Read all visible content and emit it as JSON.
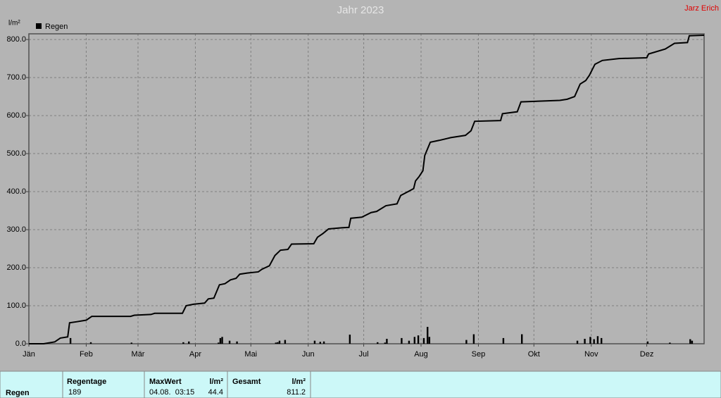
{
  "chart_data": {
    "type": "bar",
    "title": "Jahr 2023",
    "author": "Jarz Erich",
    "ylabel": "l/m²",
    "xlim": [
      0,
      365
    ],
    "xticks": [
      {
        "value": 0,
        "label": "Jän"
      },
      {
        "value": 31,
        "label": "Feb"
      },
      {
        "value": 59,
        "label": "Mär"
      },
      {
        "value": 90,
        "label": "Apr"
      },
      {
        "value": 120,
        "label": "Mai"
      },
      {
        "value": 151,
        "label": "Jun"
      },
      {
        "value": 181,
        "label": "Jul"
      },
      {
        "value": 212,
        "label": "Aug"
      },
      {
        "value": 243,
        "label": "Sep"
      },
      {
        "value": 273,
        "label": "Okt"
      },
      {
        "value": 304,
        "label": "Nov"
      },
      {
        "value": 334,
        "label": "Dez"
      }
    ],
    "ylim": [
      0,
      815
    ],
    "yticks": [
      {
        "value": 0,
        "label": "0.0"
      },
      {
        "value": 100,
        "label": "100.0"
      },
      {
        "value": 200,
        "label": "200.0"
      },
      {
        "value": 300,
        "label": "300.0"
      },
      {
        "value": 400,
        "label": "400.0"
      },
      {
        "value": 500,
        "label": "500.0"
      },
      {
        "value": 600,
        "label": "600.0"
      },
      {
        "value": 700,
        "label": "700.0"
      },
      {
        "value": 800,
        "label": "800.0"
      }
    ],
    "grid": true,
    "series": [
      {
        "name": "Regen",
        "color": "#000000",
        "x": [
          22,
          33,
          55,
          83,
          86,
          102,
          103,
          104,
          108,
          112,
          133,
          134,
          135,
          138,
          154,
          157,
          159,
          173,
          188,
          192,
          193,
          201,
          205,
          208,
          210,
          213,
          215,
          216,
          236,
          240,
          256,
          266,
          296,
          300,
          303,
          305,
          307,
          309,
          334,
          346,
          357,
          358
        ],
        "values": [
          15,
          4,
          3,
          4,
          6,
          3,
          15,
          18,
          8,
          6,
          3,
          4,
          8,
          10,
          8,
          5,
          6,
          24,
          4,
          3,
          13,
          15,
          8,
          18,
          22,
          15,
          44.4,
          18,
          10,
          25,
          15,
          25,
          8,
          13,
          18,
          12,
          20,
          15,
          6,
          3,
          12,
          8
        ]
      }
    ],
    "line": {
      "color": "#000000",
      "x": [
        0,
        8,
        14,
        17,
        21,
        22,
        26,
        31,
        34,
        55,
        57,
        66,
        68,
        83,
        85,
        89,
        95,
        97,
        100,
        103,
        106,
        109,
        112,
        114,
        118,
        124,
        126,
        130,
        133,
        136,
        140,
        142,
        154,
        156,
        159,
        162,
        169,
        173,
        174,
        180,
        185,
        188,
        193,
        199,
        201,
        205,
        208,
        209,
        211,
        213,
        214,
        217,
        222,
        228,
        236,
        239,
        241,
        255,
        256,
        264,
        266,
        287,
        291,
        295,
        298,
        301,
        303,
        306,
        310,
        319,
        334,
        335,
        344,
        349,
        356,
        357,
        365
      ],
      "values": [
        0,
        0,
        5,
        15,
        18,
        55,
        58,
        62,
        72,
        72,
        75,
        77,
        80,
        80,
        100,
        104,
        107,
        118,
        120,
        155,
        158,
        168,
        172,
        183,
        186,
        189,
        196,
        205,
        232,
        246,
        248,
        262,
        263,
        280,
        290,
        302,
        305,
        306,
        330,
        333,
        345,
        348,
        363,
        368,
        390,
        400,
        408,
        428,
        440,
        455,
        495,
        530,
        535,
        542,
        548,
        560,
        585,
        587,
        605,
        610,
        636,
        640,
        643,
        650,
        683,
        692,
        706,
        735,
        745,
        750,
        752,
        762,
        775,
        790,
        792,
        810,
        811.2
      ]
    }
  },
  "table": {
    "row_label": "Regen",
    "regentage": {
      "header": "Regentage",
      "value": 189
    },
    "maxwert": {
      "header": "MaxWert",
      "unit": "l/m²",
      "date": "04.08.  03:15",
      "value": 44.4
    },
    "gesamt": {
      "header": "Gesamt",
      "unit": "l/m²",
      "value": 811.2
    }
  }
}
